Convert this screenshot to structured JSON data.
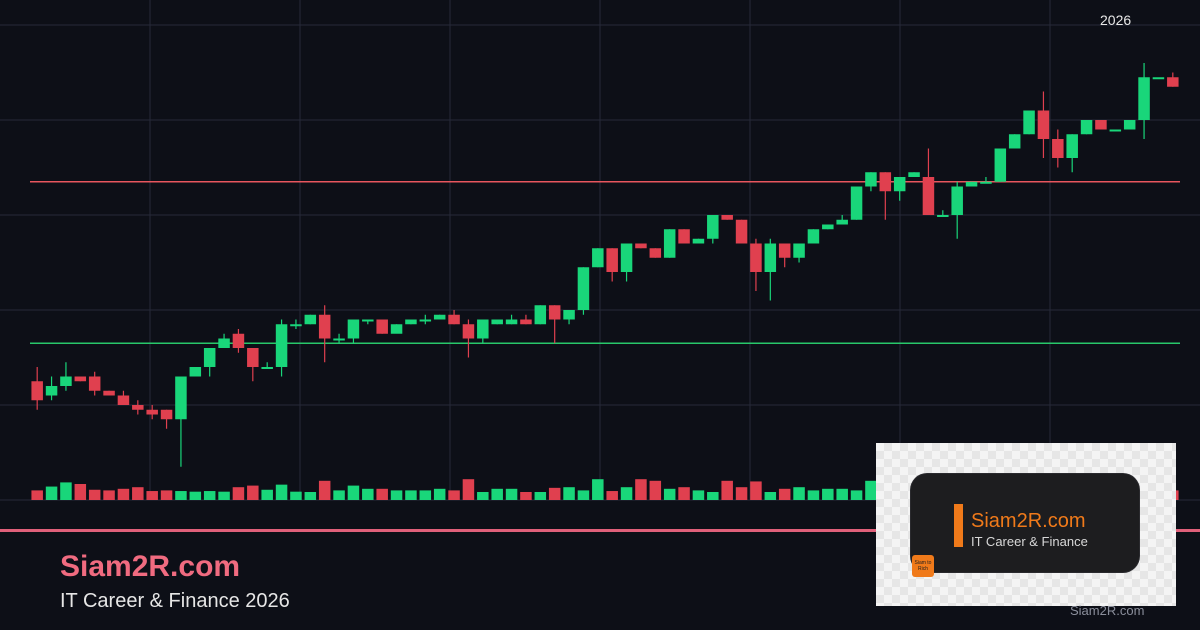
{
  "header": {
    "year": "2026"
  },
  "brand": {
    "title": "Siam2R.com",
    "subtitle": "IT Career & Finance 2026",
    "footer_url": "Siam2R.com"
  },
  "logo": {
    "title": "Siam2R.com",
    "subtitle": "IT Career & Finance",
    "badge_text": "Siam to Rich"
  },
  "colors": {
    "background": "#0d0f17",
    "grid": "#262a38",
    "up": "#19d67a",
    "down": "#e0404f",
    "resistance": "#e8565e",
    "support": "#28c76a",
    "accent": "#f06b80",
    "logo_orange": "#f07a1a"
  },
  "chart_data": {
    "type": "candlestick",
    "title": "",
    "xlabel": "",
    "ylabel": "",
    "grid": true,
    "ylim": [
      0,
      100
    ],
    "resistance_level": 67,
    "support_level": 33,
    "volume_max": 100,
    "candles": [
      [
        25,
        21,
        28,
        19
      ],
      [
        22,
        24,
        26,
        21
      ],
      [
        24,
        26,
        29,
        23
      ],
      [
        26,
        25,
        26,
        25
      ],
      [
        26,
        23,
        27,
        22
      ],
      [
        23,
        22,
        23,
        22
      ],
      [
        22,
        20,
        23,
        20
      ],
      [
        20,
        19,
        21,
        18
      ],
      [
        19,
        18,
        20,
        17
      ],
      [
        19,
        17,
        19,
        15
      ],
      [
        17,
        26,
        26,
        7
      ],
      [
        26,
        28,
        28,
        26
      ],
      [
        28,
        32,
        32,
        26
      ],
      [
        32,
        34,
        35,
        32
      ],
      [
        35,
        32,
        36,
        31
      ],
      [
        32,
        28,
        32,
        25
      ],
      [
        28,
        28,
        29,
        28
      ],
      [
        28,
        37,
        38,
        26
      ],
      [
        37,
        37,
        38,
        36
      ],
      [
        37,
        39,
        39,
        37
      ],
      [
        39,
        34,
        41,
        29
      ],
      [
        34,
        34,
        35,
        33
      ],
      [
        34,
        38,
        38,
        33
      ],
      [
        38,
        38,
        38,
        37
      ],
      [
        38,
        35,
        38,
        35
      ],
      [
        35,
        37,
        37,
        36
      ],
      [
        37,
        38,
        38,
        37
      ],
      [
        38,
        38,
        39,
        37
      ],
      [
        38,
        39,
        39,
        38
      ],
      [
        39,
        37,
        40,
        37
      ],
      [
        37,
        34,
        38,
        30
      ],
      [
        34,
        38,
        38,
        33
      ],
      [
        37,
        38,
        38,
        37
      ],
      [
        37,
        38,
        39,
        37
      ],
      [
        38,
        37,
        39,
        37
      ],
      [
        37,
        41,
        41,
        37
      ],
      [
        41,
        38,
        41,
        33
      ],
      [
        38,
        40,
        40,
        37
      ],
      [
        40,
        49,
        49,
        39
      ],
      [
        49,
        53,
        53,
        49
      ],
      [
        53,
        48,
        53,
        46
      ],
      [
        48,
        54,
        54,
        46
      ],
      [
        54,
        53,
        54,
        53
      ],
      [
        53,
        51,
        53,
        51
      ],
      [
        51,
        57,
        57,
        51
      ],
      [
        57,
        54,
        57,
        54
      ],
      [
        54,
        55,
        55,
        54
      ],
      [
        55,
        60,
        60,
        54
      ],
      [
        60,
        59,
        60,
        59
      ],
      [
        59,
        54,
        59,
        54
      ],
      [
        54,
        48,
        55,
        44
      ],
      [
        48,
        54,
        55,
        42
      ],
      [
        54,
        51,
        54,
        49
      ],
      [
        51,
        54,
        54,
        50
      ],
      [
        54,
        57,
        57,
        54
      ],
      [
        57,
        58,
        58,
        57
      ],
      [
        58,
        59,
        60,
        58
      ],
      [
        59,
        66,
        66,
        59
      ],
      [
        66,
        69,
        69,
        65
      ],
      [
        69,
        65,
        69,
        59
      ],
      [
        65,
        68,
        68,
        63
      ],
      [
        68,
        69,
        69,
        68
      ],
      [
        68,
        60,
        74,
        60
      ],
      [
        60,
        60,
        61,
        60
      ],
      [
        60,
        66,
        67,
        55
      ],
      [
        66,
        67,
        67,
        66
      ],
      [
        67,
        67,
        68,
        67
      ],
      [
        67,
        74,
        74,
        67
      ],
      [
        74,
        77,
        77,
        74
      ],
      [
        77,
        82,
        82,
        77
      ],
      [
        82,
        76,
        86,
        72
      ],
      [
        76,
        72,
        78,
        70
      ],
      [
        72,
        77,
        77,
        69
      ],
      [
        77,
        80,
        80,
        77
      ],
      [
        80,
        78,
        80,
        78
      ],
      [
        78,
        78,
        78,
        78
      ],
      [
        78,
        80,
        80,
        79
      ],
      [
        80,
        89,
        92,
        76
      ],
      [
        89,
        89,
        89,
        89
      ],
      [
        89,
        87,
        90,
        87
      ]
    ],
    "volumes": [
      30,
      42,
      55,
      50,
      32,
      30,
      35,
      40,
      28,
      30,
      28,
      26,
      28,
      26,
      40,
      45,
      32,
      48,
      26,
      25,
      60,
      30,
      45,
      35,
      35,
      30,
      30,
      30,
      35,
      30,
      65,
      25,
      35,
      35,
      25,
      25,
      38,
      40,
      30,
      65,
      28,
      40,
      65,
      60,
      35,
      40,
      30,
      25,
      60,
      40,
      58,
      25,
      35,
      40,
      30,
      35,
      35,
      30,
      60,
      30,
      28,
      40,
      30,
      25,
      35,
      35,
      35,
      30,
      40,
      48,
      40,
      35,
      45,
      30,
      25,
      30,
      30,
      35,
      35,
      30
    ]
  }
}
